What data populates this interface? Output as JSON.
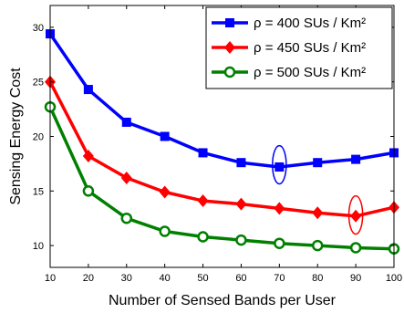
{
  "chart_data": {
    "type": "line",
    "title": "",
    "xlabel": "Number of Sensed Bands per User",
    "ylabel": "Sensing Energy Cost",
    "xlim": [
      10,
      100
    ],
    "ylim": [
      8,
      32
    ],
    "x": [
      10,
      20,
      30,
      40,
      50,
      60,
      70,
      80,
      90,
      100
    ],
    "xticks": [
      "10",
      "20",
      "30",
      "40",
      "50",
      "60",
      "70",
      "80",
      "90",
      "100"
    ],
    "yticks": [
      "10",
      "15",
      "20",
      "25",
      "30"
    ],
    "ytick_values": [
      10,
      15,
      20,
      25,
      30
    ],
    "grid": false,
    "legend_position": "top-right",
    "series": [
      {
        "name": "ρ = 400 SUs / Km²",
        "color": "#0000ff",
        "marker": "square",
        "values": [
          29.4,
          24.3,
          21.3,
          20.0,
          18.5,
          17.6,
          17.2,
          17.6,
          17.9,
          18.5
        ]
      },
      {
        "name": "ρ = 450 SUs / Km²",
        "color": "#ff0000",
        "marker": "diamond",
        "values": [
          25.0,
          18.2,
          16.2,
          14.9,
          14.1,
          13.8,
          13.4,
          13.0,
          12.7,
          13.5
        ]
      },
      {
        "name": "ρ = 500 SUs / Km²",
        "color": "#008000",
        "marker": "circle",
        "values": [
          22.7,
          15.0,
          12.5,
          11.3,
          10.8,
          10.5,
          10.2,
          10.0,
          9.8,
          9.7
        ]
      }
    ],
    "annotations": [
      {
        "type": "ellipse",
        "color": "#0000ff",
        "x": 70,
        "y": 17.4,
        "rx": 1.8,
        "ry": 1.75
      },
      {
        "type": "ellipse",
        "color": "#ff0000",
        "x": 90,
        "y": 12.8,
        "rx": 1.8,
        "ry": 1.75
      }
    ]
  }
}
